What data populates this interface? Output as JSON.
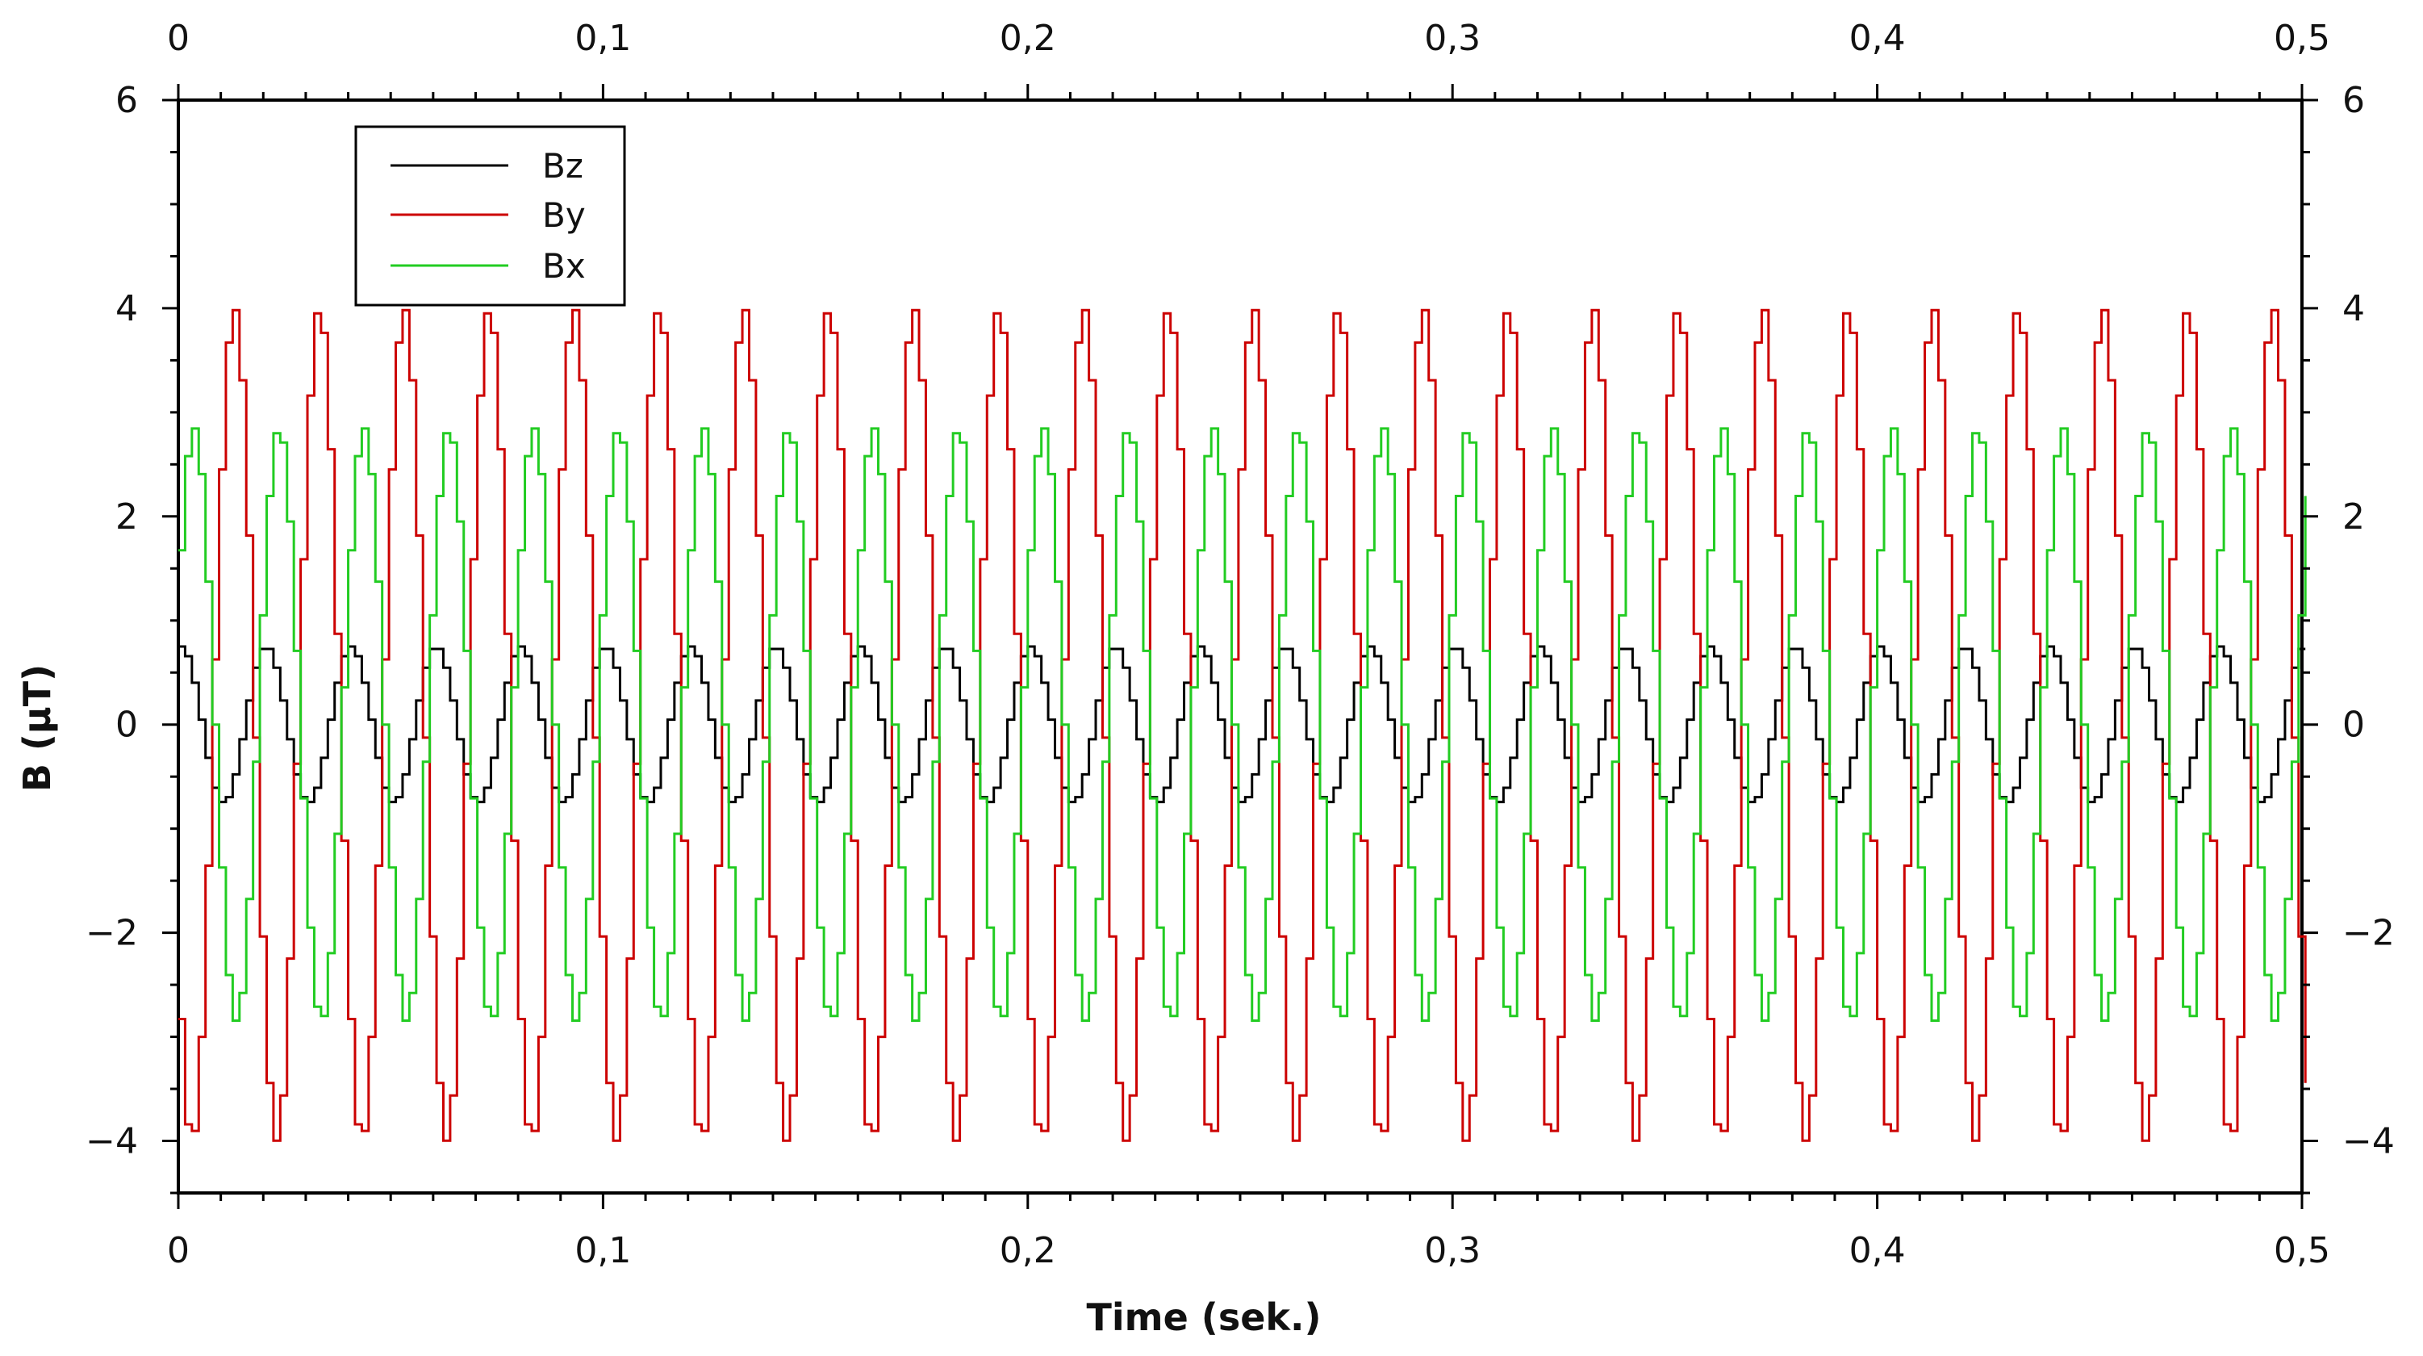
{
  "chart_data": {
    "type": "line",
    "title": "",
    "xlabel": "Time (sek.)",
    "ylabel": "B (µT)",
    "xlim": [
      0,
      0.5
    ],
    "ylim": [
      -4.5,
      6
    ],
    "x_ticks": [
      0,
      0.1,
      0.2,
      0.3,
      0.4,
      0.5
    ],
    "x_tick_labels": [
      "0",
      "0,1",
      "0,2",
      "0,3",
      "0,4",
      "0,5"
    ],
    "y_ticks": [
      -4,
      -2,
      0,
      2,
      4,
      6
    ],
    "y_tick_labels": [
      "−4",
      "−2",
      "0",
      "2",
      "4",
      "6"
    ],
    "x_minor_step": 0.01,
    "y_minor_step": 0.5,
    "grid": false,
    "legend_position": "top-left",
    "sampling_interval": 0.0016,
    "frequency_hz": 50,
    "series": [
      {
        "name": "Bz",
        "color": "#000000",
        "amplitude": 0.75,
        "phase_deg": 90,
        "offset": 0
      },
      {
        "name": "By",
        "color": "#cc0000",
        "amplitude": 4.0,
        "phase_deg": 225,
        "offset": 0
      },
      {
        "name": "Bx",
        "color": "#22cc22",
        "amplitude": 2.85,
        "phase_deg": 36,
        "offset": 0
      }
    ]
  }
}
